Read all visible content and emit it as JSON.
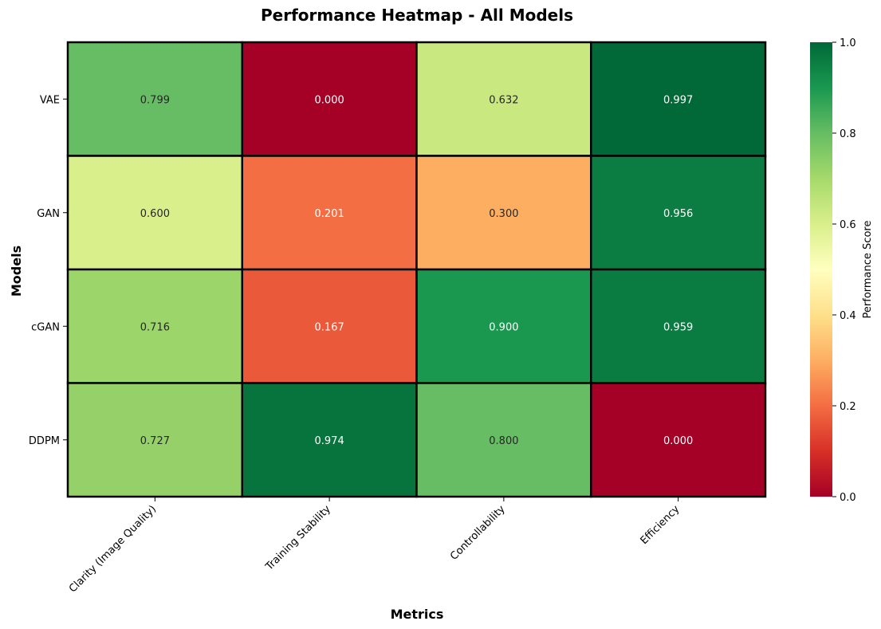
{
  "chart_data": {
    "type": "heatmap",
    "title": "Performance Heatmap - All Models",
    "xlabel": "Metrics",
    "ylabel": "Models",
    "x_categories": [
      "Clarity (Image Quality)",
      "Training Stability",
      "Controllability",
      "Efficiency"
    ],
    "y_categories": [
      "VAE",
      "GAN",
      "cGAN",
      "DDPM"
    ],
    "values": [
      [
        0.799,
        0.0,
        0.632,
        0.997
      ],
      [
        0.6,
        0.201,
        0.3,
        0.956
      ],
      [
        0.716,
        0.167,
        0.9,
        0.959
      ],
      [
        0.727,
        0.974,
        0.8,
        0.0
      ]
    ],
    "colorbar": {
      "label": "Performance Score",
      "range": [
        0,
        1
      ],
      "ticks": [
        "0.0",
        "0.2",
        "0.4",
        "0.6",
        "0.8",
        "1.0"
      ],
      "colormap": "RdYlGn"
    }
  }
}
